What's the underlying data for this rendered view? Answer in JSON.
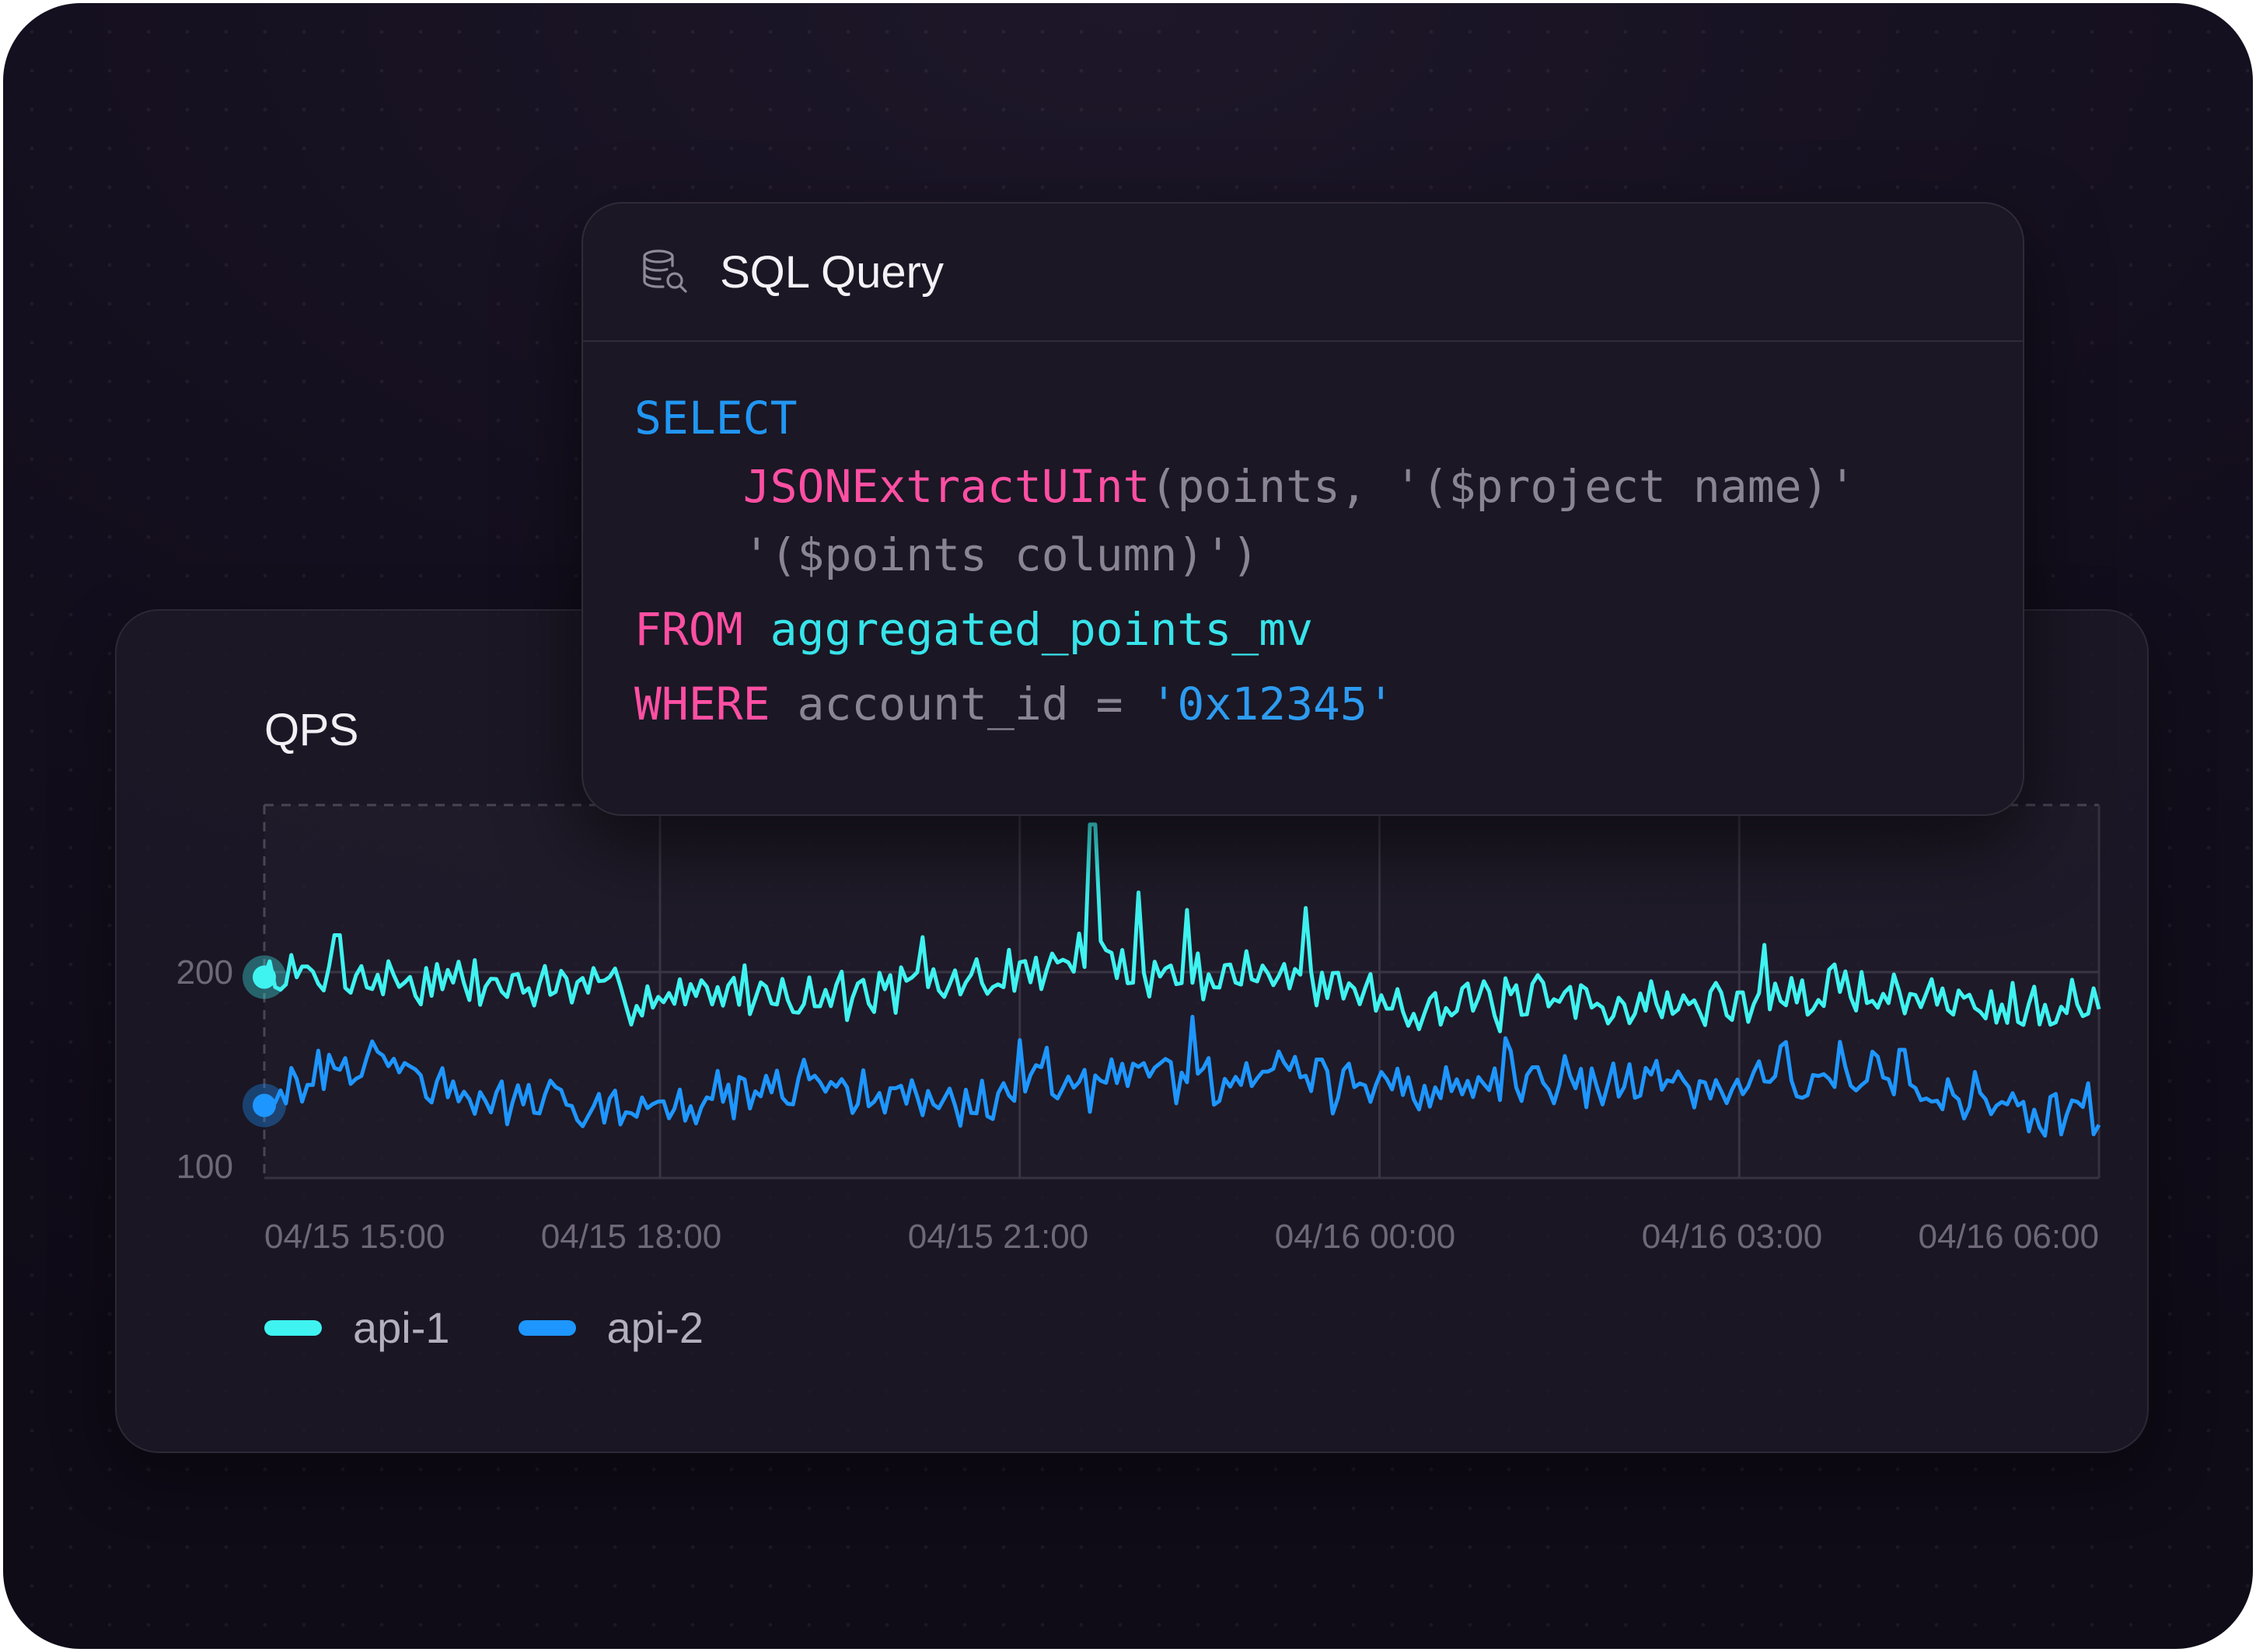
{
  "sql_card": {
    "title": "SQL Query",
    "icon": "database-search-icon",
    "code": {
      "select_kw": "SELECT",
      "func": "JSONExtractUInt",
      "line2_args": "(points, '($project name)'",
      "line3": "'($points column)')",
      "from_kw": "FROM",
      "table": "aggregated_points_mv",
      "where_kw": "WHERE",
      "where_col": "account_id",
      "where_op": "=",
      "where_value": "'0x12345'"
    }
  },
  "colors": {
    "api_1": "#3ff3f0",
    "api_2": "#1e96ff",
    "keyword_blue": "#2196f3",
    "keyword_pink": "#ff4fa3",
    "identifier_cyan": "#37e4ea"
  },
  "chart_data": {
    "type": "line",
    "title": "QPS",
    "xlabel": "",
    "ylabel": "",
    "y_ticks": [
      "200",
      "100"
    ],
    "ylim": [
      94,
      286
    ],
    "x_ticks": [
      "04/15 15:00",
      "04/15 18:00",
      "04/15 21:00",
      "04/16 00:00",
      "04/16 03:00",
      "04/16 06:00"
    ],
    "x_range_hours": [
      14.7,
      30.0
    ],
    "grid": true,
    "legend_position": "bottom-left",
    "series": [
      {
        "name": "api-1",
        "key": "api_1",
        "anchors": [
          [
            14.7,
            199
          ],
          [
            15.2,
            197
          ],
          [
            15.8,
            196
          ],
          [
            16.5,
            194
          ],
          [
            17.2,
            192
          ],
          [
            17.8,
            188
          ],
          [
            18.1,
            188
          ],
          [
            18.6,
            191
          ],
          [
            19.4,
            188
          ],
          [
            20.0,
            191
          ],
          [
            20.7,
            196
          ],
          [
            21.2,
            203
          ],
          [
            21.55,
            208
          ],
          [
            21.85,
            202
          ],
          [
            22.3,
            198
          ],
          [
            22.8,
            200
          ],
          [
            23.2,
            196
          ],
          [
            23.8,
            192
          ],
          [
            24.1,
            186
          ],
          [
            24.6,
            182
          ],
          [
            25.2,
            184
          ],
          [
            25.8,
            185
          ],
          [
            26.4,
            183
          ],
          [
            27.0,
            184
          ],
          [
            27.6,
            188
          ],
          [
            28.0,
            193
          ],
          [
            28.4,
            187
          ],
          [
            28.9,
            185
          ],
          [
            29.4,
            186
          ],
          [
            30.0,
            183
          ]
        ],
        "spikes": [
          [
            21.6,
            276
          ],
          [
            22.0,
            241
          ],
          [
            22.4,
            232
          ],
          [
            23.4,
            233
          ],
          [
            27.2,
            214
          ],
          [
            20.2,
            218
          ],
          [
            15.3,
            219
          ]
        ]
      },
      {
        "name": "api-2",
        "key": "api_2",
        "anchors": [
          [
            14.7,
            141
          ],
          [
            15.0,
            137
          ],
          [
            15.25,
            150
          ],
          [
            15.8,
            155
          ],
          [
            16.3,
            135
          ],
          [
            16.8,
            132
          ],
          [
            17.4,
            134
          ],
          [
            18.0,
            132
          ],
          [
            18.6,
            136
          ],
          [
            19.2,
            140
          ],
          [
            19.8,
            138
          ],
          [
            20.4,
            134
          ],
          [
            20.9,
            135
          ],
          [
            21.2,
            148
          ],
          [
            21.6,
            140
          ],
          [
            22.1,
            147
          ],
          [
            22.5,
            143
          ],
          [
            22.9,
            145
          ],
          [
            23.3,
            147
          ],
          [
            23.8,
            140
          ],
          [
            24.4,
            138
          ],
          [
            24.7,
            140
          ],
          [
            25.0,
            148
          ],
          [
            25.6,
            144
          ],
          [
            26.0,
            140
          ],
          [
            26.4,
            143
          ],
          [
            26.9,
            144
          ],
          [
            27.3,
            147
          ],
          [
            27.8,
            150
          ],
          [
            28.3,
            144
          ],
          [
            28.7,
            138
          ],
          [
            29.1,
            133
          ],
          [
            29.5,
            129
          ],
          [
            30.0,
            130
          ]
        ],
        "spikes": [
          [
            21.0,
            165
          ],
          [
            22.45,
            177
          ],
          [
            23.5,
            155
          ],
          [
            25.05,
            166
          ],
          [
            27.4,
            164
          ],
          [
            28.35,
            160
          ],
          [
            29.4,
            118
          ]
        ]
      }
    ]
  }
}
